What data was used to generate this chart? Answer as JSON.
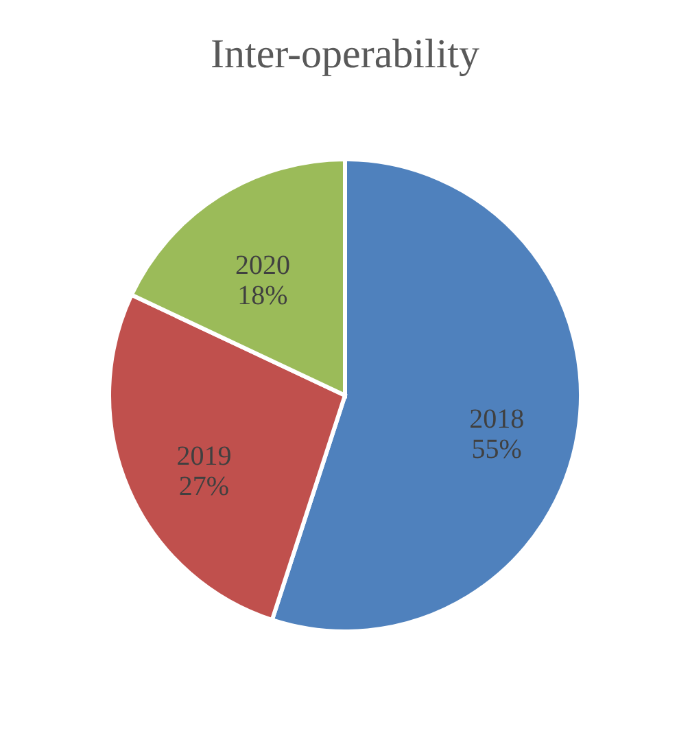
{
  "chart_data": {
    "type": "pie",
    "title": "Inter-operability",
    "categories": [
      "2018",
      "2019",
      "2020"
    ],
    "values": [
      55,
      27,
      18
    ],
    "colors": [
      "#4f81bd",
      "#c0504d",
      "#9bbb59"
    ],
    "value_labels": [
      "55%",
      "27%",
      "18%"
    ],
    "legend": false
  }
}
